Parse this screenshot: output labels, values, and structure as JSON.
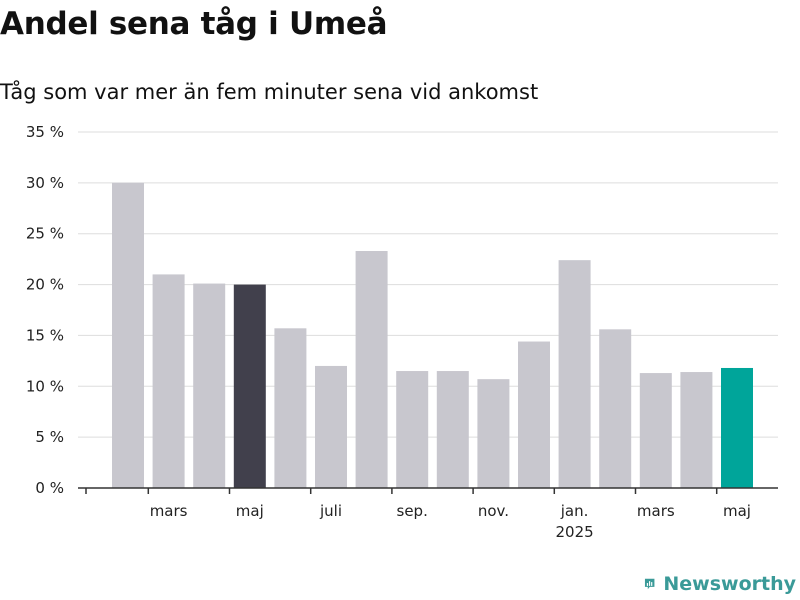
{
  "header": {
    "title": "Andel sena tåg i Umeå",
    "subtitle": "Tåg som var mer än fem minuter sena vid ankomst"
  },
  "brand": {
    "name": "Newsworthy",
    "icon": "bar-chart-icon",
    "color": "#3a9a98"
  },
  "colors": {
    "bar_default": "#c8c7ce",
    "bar_highlight_dark": "#41404c",
    "bar_highlight_accent": "#00a59a",
    "grid": "#dddddd",
    "axis": "#333333"
  },
  "chart_data": {
    "type": "bar",
    "title": "Andel sena tåg i Umeå",
    "subtitle": "Tåg som var mer än fem minuter sena vid ankomst",
    "xlabel": "",
    "ylabel": "",
    "ylim": [
      0,
      35
    ],
    "yticks": [
      0,
      5,
      10,
      15,
      20,
      25,
      30,
      35
    ],
    "ytick_labels": [
      "0 %",
      "5 %",
      "10 %",
      "15 %",
      "20 %",
      "25 %",
      "30 %",
      "35 %"
    ],
    "unit": "%",
    "grid": true,
    "legend": "none",
    "categories": [
      "2024-02",
      "2024-03",
      "2024-04",
      "2024-05",
      "2024-06",
      "2024-07",
      "2024-08",
      "2024-09",
      "2024-10",
      "2024-11",
      "2024-12",
      "2025-01",
      "2025-02",
      "2025-03",
      "2025-04",
      "2025-05"
    ],
    "values": [
      30.0,
      21.0,
      20.1,
      20.0,
      15.7,
      12.0,
      23.3,
      11.5,
      11.5,
      10.7,
      14.4,
      22.4,
      15.6,
      11.3,
      11.4,
      11.8
    ],
    "highlights": {
      "2024-05": "bar_highlight_dark",
      "2025-05": "bar_highlight_accent"
    },
    "xtick_labels": [
      {
        "category": "2024-03",
        "label": "mars"
      },
      {
        "category": "2024-05",
        "label": "maj"
      },
      {
        "category": "2024-07",
        "label": "juli"
      },
      {
        "category": "2024-09",
        "label": "sep."
      },
      {
        "category": "2024-11",
        "label": "nov."
      },
      {
        "category": "2025-01",
        "label": "jan.",
        "sublabel": "2025"
      },
      {
        "category": "2025-03",
        "label": "mars"
      },
      {
        "category": "2025-05",
        "label": "maj"
      }
    ]
  }
}
